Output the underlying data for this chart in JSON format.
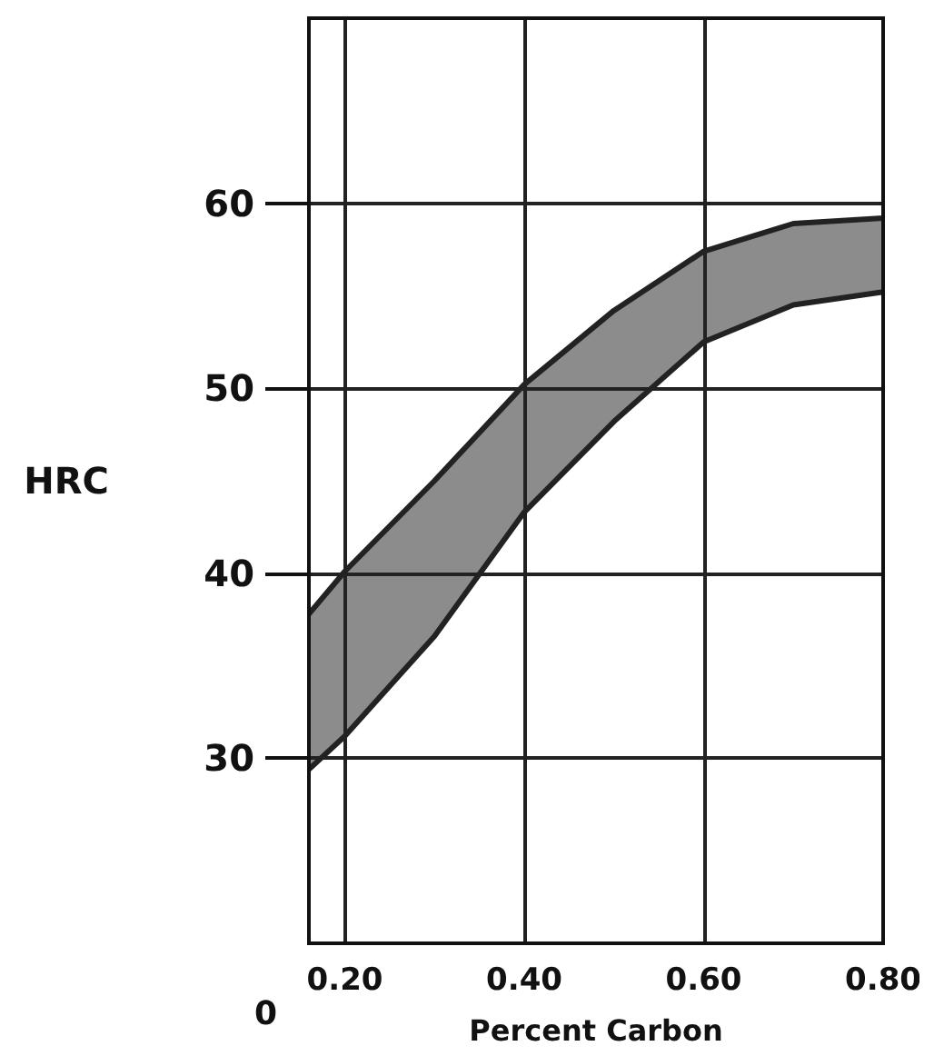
{
  "chart_data": {
    "type": "area",
    "xlabel": "Percent Carbon",
    "ylabel": "HRC",
    "annotations": [
      "0"
    ],
    "xlim": [
      0.16,
      0.8
    ],
    "ylim": [
      20,
      70
    ],
    "xticks": [
      {
        "value": 0.2,
        "label": "0.20"
      },
      {
        "value": 0.4,
        "label": "0.40"
      },
      {
        "value": 0.6,
        "label": "0.60"
      },
      {
        "value": 0.8,
        "label": "0.80"
      }
    ],
    "yticks": [
      30,
      40,
      50,
      60
    ],
    "grid": true,
    "series": [
      {
        "color": "#8c8c8c",
        "x": [
          0.16,
          0.2,
          0.3,
          0.4,
          0.5,
          0.6,
          0.7,
          0.8
        ],
        "values": [
          37.8,
          40.1,
          45,
          50.2,
          54.2,
          57.4,
          58.9,
          59.2
        ]
      },
      {
        "color": "#ffffff",
        "x": [
          0.16,
          0.2,
          0.3,
          0.4,
          0.5,
          0.6,
          0.7,
          0.8
        ],
        "values": [
          29.4,
          31.2,
          36.6,
          43.3,
          48.2,
          52.5,
          54.5,
          55.2
        ]
      }
    ]
  }
}
